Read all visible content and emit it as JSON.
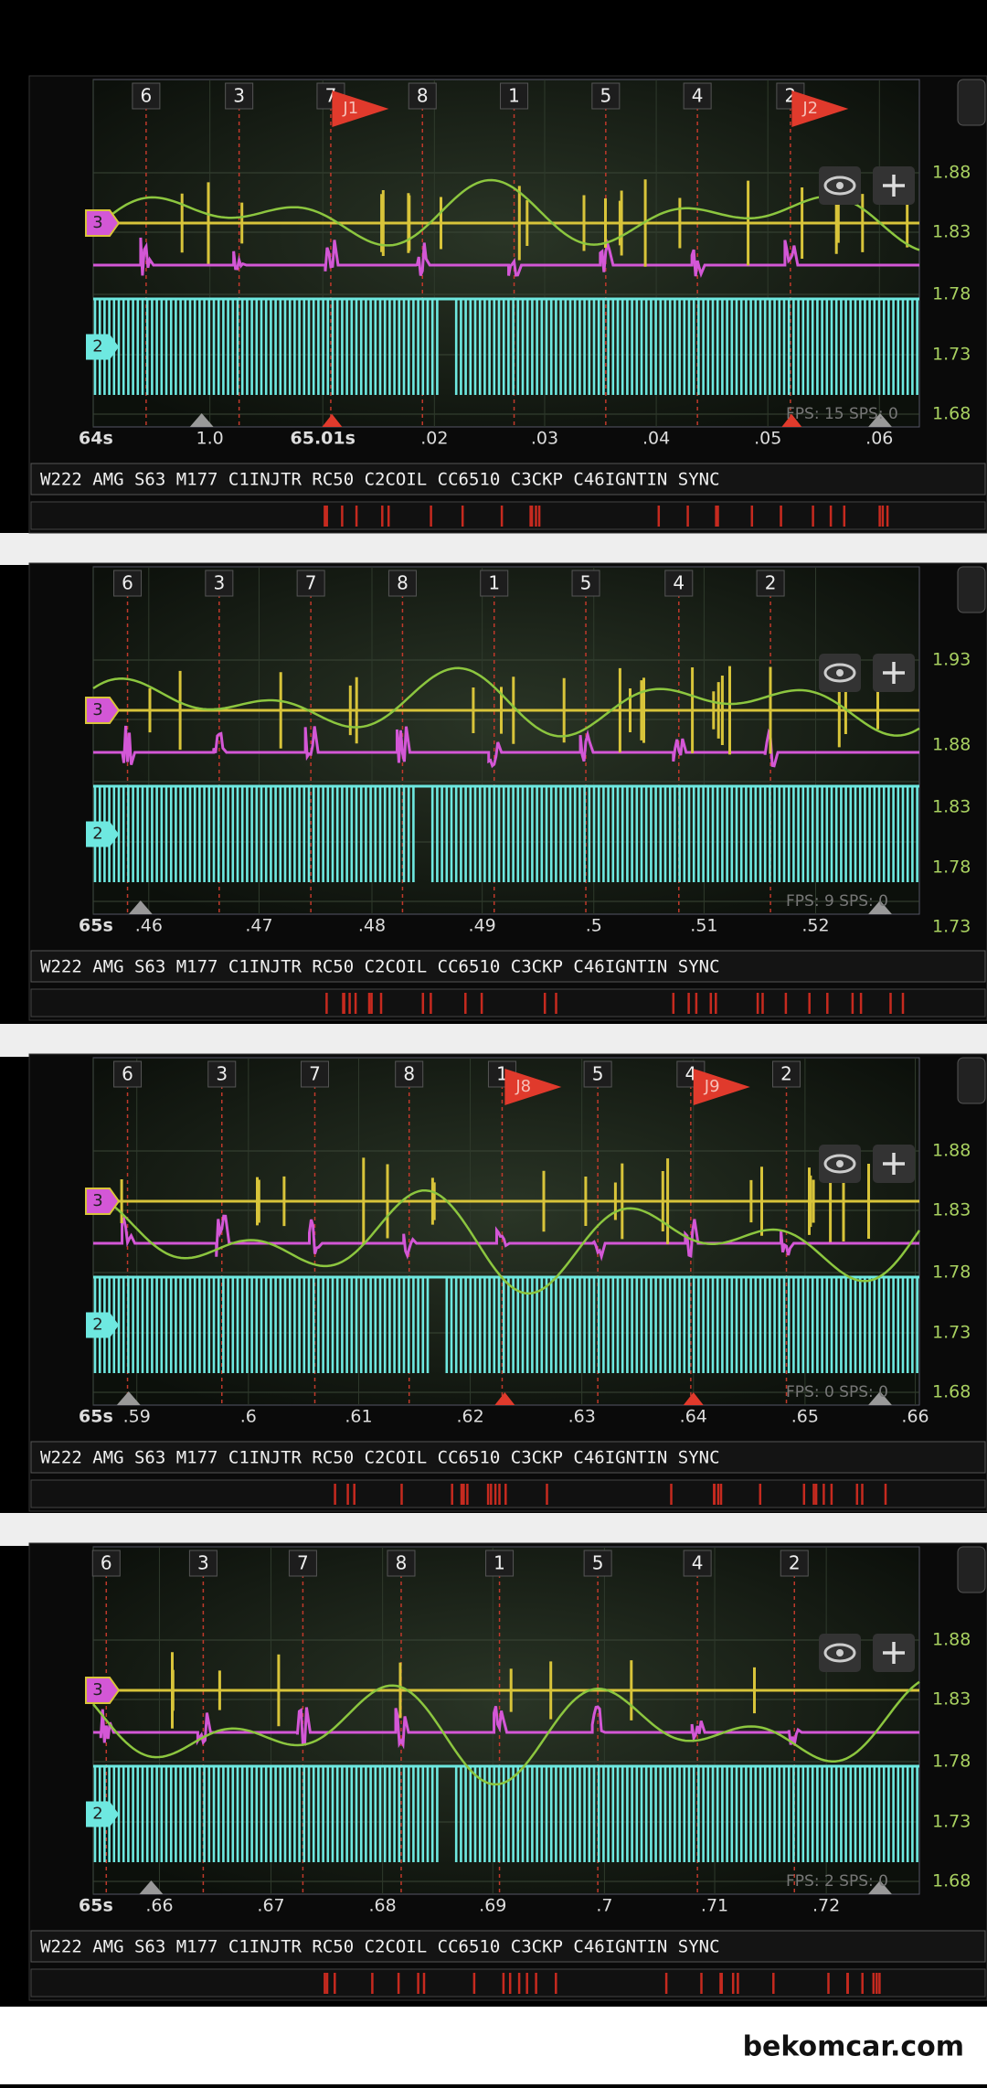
{
  "panels": [
    {
      "cylinder_markers": [
        "6",
        "3",
        "7",
        "8",
        "1",
        "5",
        "4",
        "2"
      ],
      "flags": [
        "J1",
        "J2"
      ],
      "y_labels": [
        "1.88",
        "1.83",
        "1.78",
        "1.73",
        "1.68"
      ],
      "x_labels": [
        "64s",
        "1.0",
        "65.01s",
        ".02",
        ".03",
        ".04",
        ".05",
        ".06"
      ],
      "channel_tags": [
        "3",
        "2"
      ],
      "status": "FPS: 15  SPS: 0",
      "channel_title": "W222 AMG S63 M177 C1INJTR RC50 C2COIL CC6510 C3CKP C46IGNTIN SYNC"
    },
    {
      "cylinder_markers": [
        "6",
        "3",
        "7",
        "8",
        "1",
        "5",
        "4",
        "2"
      ],
      "flags": [],
      "y_labels": [
        "1.93",
        "1.88",
        "1.83",
        "1.78",
        "1.73"
      ],
      "x_labels": [
        "65s",
        ".46",
        ".47",
        ".48",
        ".49",
        ".5",
        ".51",
        ".52"
      ],
      "channel_tags": [
        "3",
        "2"
      ],
      "status": "FPS: 9  SPS: 0",
      "channel_title": "W222 AMG S63 M177 C1INJTR RC50 C2COIL CC6510 C3CKP C46IGNTIN SYNC"
    },
    {
      "cylinder_markers": [
        "6",
        "3",
        "7",
        "8",
        "1",
        "5",
        "4",
        "2"
      ],
      "flags": [
        "J8",
        "J9"
      ],
      "y_labels": [
        "1.88",
        "1.83",
        "1.78",
        "1.73",
        "1.68"
      ],
      "x_labels": [
        "65s",
        ".59",
        ".6",
        ".61",
        ".62",
        ".63",
        ".64",
        ".65",
        ".66"
      ],
      "channel_tags": [
        "3",
        "2"
      ],
      "status": "FPS: 0  SPS: 0",
      "channel_title": "W222 AMG S63 M177 C1INJTR RC50 C2COIL CC6510 C3CKP C46IGNTIN SYNC"
    },
    {
      "cylinder_markers": [
        "6",
        "3",
        "7",
        "8",
        "1",
        "5",
        "4",
        "2"
      ],
      "flags": [],
      "y_labels": [
        "1.88",
        "1.83",
        "1.78",
        "1.73",
        "1.68"
      ],
      "x_labels": [
        "65s",
        ".66",
        ".67",
        ".68",
        ".69",
        ".7",
        ".71",
        ".72"
      ],
      "channel_tags": [
        "3",
        "2"
      ],
      "status": "FPS: 2  SPS: 0",
      "channel_title": "W222 AMG S63 M177 C1INJTR RC50 C2COIL CC6510 C3CKP C46IGNTIN SYNC"
    }
  ],
  "watermark": "bekomcar.com"
}
